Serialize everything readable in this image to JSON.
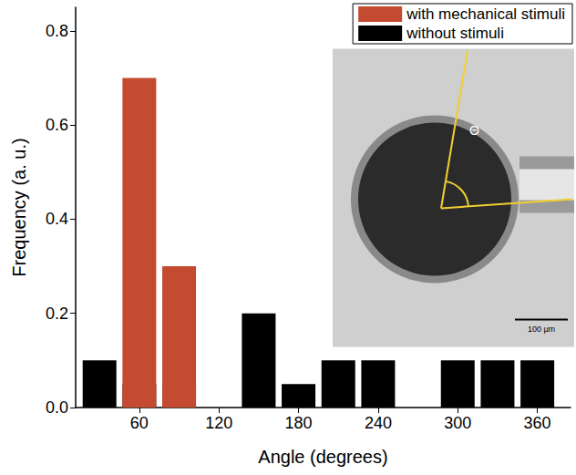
{
  "chart_data": {
    "type": "bar",
    "stacked": true,
    "x_label": "Angle (degrees)",
    "y_label": "Frequency (a. u.)",
    "x": [
      30,
      60,
      90,
      150,
      180,
      210,
      240,
      300,
      330,
      360
    ],
    "series": [
      {
        "name": "without stimuli",
        "color": "#000000",
        "values": [
          0.1,
          0.05,
          0.05,
          0.2,
          0.05,
          0.1,
          0.1,
          0.1,
          0.1,
          0.1
        ]
      },
      {
        "name": "with mechanical stimuli",
        "color": "#c44a32",
        "values": [
          null,
          0.7,
          0.3,
          null,
          null,
          null,
          null,
          null,
          null,
          null
        ]
      }
    ],
    "xlim": [
      12,
      385
    ],
    "xticks": [
      60,
      120,
      180,
      240,
      300,
      360
    ],
    "ylim": [
      0,
      0.85
    ],
    "yticks": [
      {
        "value": 0,
        "label": "0.0"
      },
      {
        "value": 0.2,
        "label": "0.2"
      },
      {
        "value": 0.4,
        "label": "0.4"
      },
      {
        "value": 0.6,
        "label": "0.6"
      },
      {
        "value": 0.8,
        "label": "0.8"
      }
    ],
    "legend": "upper right",
    "grid": false,
    "annotations": [
      "Θ",
      "100 µm"
    ]
  }
}
